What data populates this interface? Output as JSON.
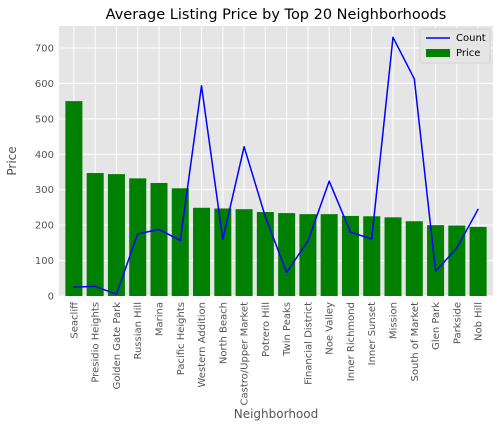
{
  "chart_data": {
    "type": "bar",
    "title": "Average Listing Price by Top 20 Neighborhoods",
    "xlabel": "Neighborhood",
    "ylabel": "Price",
    "ylim": [
      0,
      762
    ],
    "yticks": [
      0,
      100,
      200,
      300,
      400,
      500,
      600,
      700
    ],
    "grid": true,
    "legend_position": "top-right",
    "categories": [
      "Seacliff",
      "Presidio Heights",
      "Golden Gate Park",
      "Russian Hill",
      "Marina",
      "Pacific Heights",
      "Western Addition",
      "North Beach",
      "Castro/Upper Market",
      "Potrero Hill",
      "Twin Peaks",
      "Financial District",
      "Noe Valley",
      "Inner Richmond",
      "Inner Sunset",
      "Mission",
      "South of Market",
      "Glen Park",
      "Parkside",
      "Nob Hill"
    ],
    "series": [
      {
        "name": "Price",
        "type": "bar",
        "color": "#008000",
        "values": [
          550,
          347,
          344,
          332,
          319,
          304,
          249,
          247,
          245,
          237,
          234,
          231,
          231,
          226,
          225,
          222,
          211,
          200,
          199,
          195
        ]
      },
      {
        "name": "Count",
        "type": "line",
        "color": "#0000ff",
        "values": [
          25,
          27,
          5,
          175,
          188,
          157,
          593,
          160,
          421,
          223,
          67,
          155,
          324,
          180,
          161,
          730,
          613,
          70,
          135,
          245
        ]
      }
    ]
  }
}
